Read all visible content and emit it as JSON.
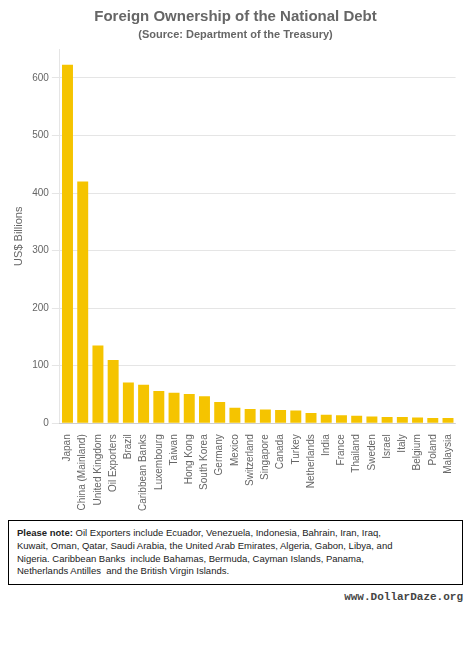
{
  "chart_data": {
    "type": "bar",
    "title": "Foreign Ownership of the National Debt",
    "subtitle": "(Source: Department of the Treasury)",
    "ylabel": "US$ Billions",
    "categories": [
      "Japan",
      "China (Mainland)",
      "United Kingdom",
      "Oil Exporters",
      "Brazil",
      "Caribbean Banks",
      "Luxembourg",
      "Taiwan",
      "Hong Kong",
      "South Korea",
      "Germany",
      "Mexico",
      "Switzerland",
      "Singapore",
      "Canada",
      "Turkey",
      "Netherlands",
      "India",
      "France",
      "Thailand",
      "Sweden",
      "Israel",
      "Italy",
      "Belgium",
      "Poland",
      "Malaysia"
    ],
    "values": [
      623,
      420,
      135,
      110,
      71,
      67,
      56,
      53,
      51,
      47,
      37,
      27,
      25,
      24,
      23,
      22,
      18,
      15,
      14,
      13,
      12,
      11,
      11,
      10,
      9,
      9
    ],
    "color": "#F5C400",
    "ylim": [
      0,
      650
    ],
    "yticks": [
      0,
      100,
      200,
      300,
      400,
      500,
      600
    ],
    "grid": true,
    "annotations": [
      "Please note:",
      " Oil Exporters include Ecuador, Venezuela, Indonesia, Bahrain, Iran, Iraq,\nKuwait, Oman, Qatar, Saudi Arabia, the United Arab Emirates, Algeria, Gabon, Libya, and\nNigeria. Caribbean Banks  include Bahamas, Bermuda, Cayman Islands, Panama,\nNetherlands Antilles  and the British Virgin Islands.",
      "www.DollarDaze.org"
    ]
  }
}
